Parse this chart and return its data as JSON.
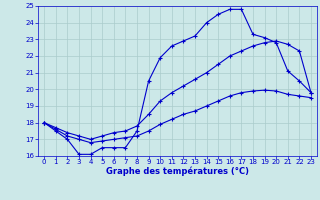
{
  "line1_x": [
    0,
    1,
    2,
    3,
    4,
    5,
    6,
    7,
    8,
    9,
    10,
    11,
    12,
    13,
    14,
    15,
    16,
    17,
    18,
    19,
    20,
    21,
    22,
    23
  ],
  "line1_y": [
    18.0,
    17.5,
    17.0,
    16.1,
    16.1,
    16.5,
    16.5,
    16.5,
    17.5,
    20.5,
    21.9,
    22.6,
    22.9,
    23.2,
    24.0,
    24.5,
    24.8,
    24.8,
    23.3,
    23.1,
    22.8,
    21.1,
    20.5,
    19.8
  ],
  "line2_x": [
    0,
    1,
    2,
    3,
    4,
    5,
    6,
    7,
    8,
    9,
    10,
    11,
    12,
    13,
    14,
    15,
    16,
    17,
    18,
    19,
    20,
    21,
    22,
    23
  ],
  "line2_y": [
    18.0,
    17.7,
    17.4,
    17.2,
    17.0,
    17.2,
    17.4,
    17.5,
    17.8,
    18.5,
    19.3,
    19.8,
    20.2,
    20.6,
    21.0,
    21.5,
    22.0,
    22.3,
    22.6,
    22.8,
    22.9,
    22.7,
    22.3,
    19.8
  ],
  "line3_x": [
    0,
    1,
    2,
    3,
    4,
    5,
    6,
    7,
    8,
    9,
    10,
    11,
    12,
    13,
    14,
    15,
    16,
    17,
    18,
    19,
    20,
    21,
    22,
    23
  ],
  "line3_y": [
    18.0,
    17.6,
    17.2,
    17.0,
    16.8,
    16.9,
    17.0,
    17.1,
    17.2,
    17.5,
    17.9,
    18.2,
    18.5,
    18.7,
    19.0,
    19.3,
    19.6,
    19.8,
    19.9,
    19.95,
    19.9,
    19.7,
    19.6,
    19.5
  ],
  "line_color": "#0000cc",
  "bg_color": "#cce8e8",
  "grid_color": "#aacccc",
  "xlim": [
    -0.5,
    23.5
  ],
  "ylim": [
    16,
    25
  ],
  "yticks": [
    16,
    17,
    18,
    19,
    20,
    21,
    22,
    23,
    24,
    25
  ],
  "xticks": [
    0,
    1,
    2,
    3,
    4,
    5,
    6,
    7,
    8,
    9,
    10,
    11,
    12,
    13,
    14,
    15,
    16,
    17,
    18,
    19,
    20,
    21,
    22,
    23
  ],
  "xlabel": "Graphe des températures (°C)",
  "marker": "+",
  "markersize": 3,
  "linewidth": 0.8,
  "tick_fontsize": 5,
  "xlabel_fontsize": 6
}
